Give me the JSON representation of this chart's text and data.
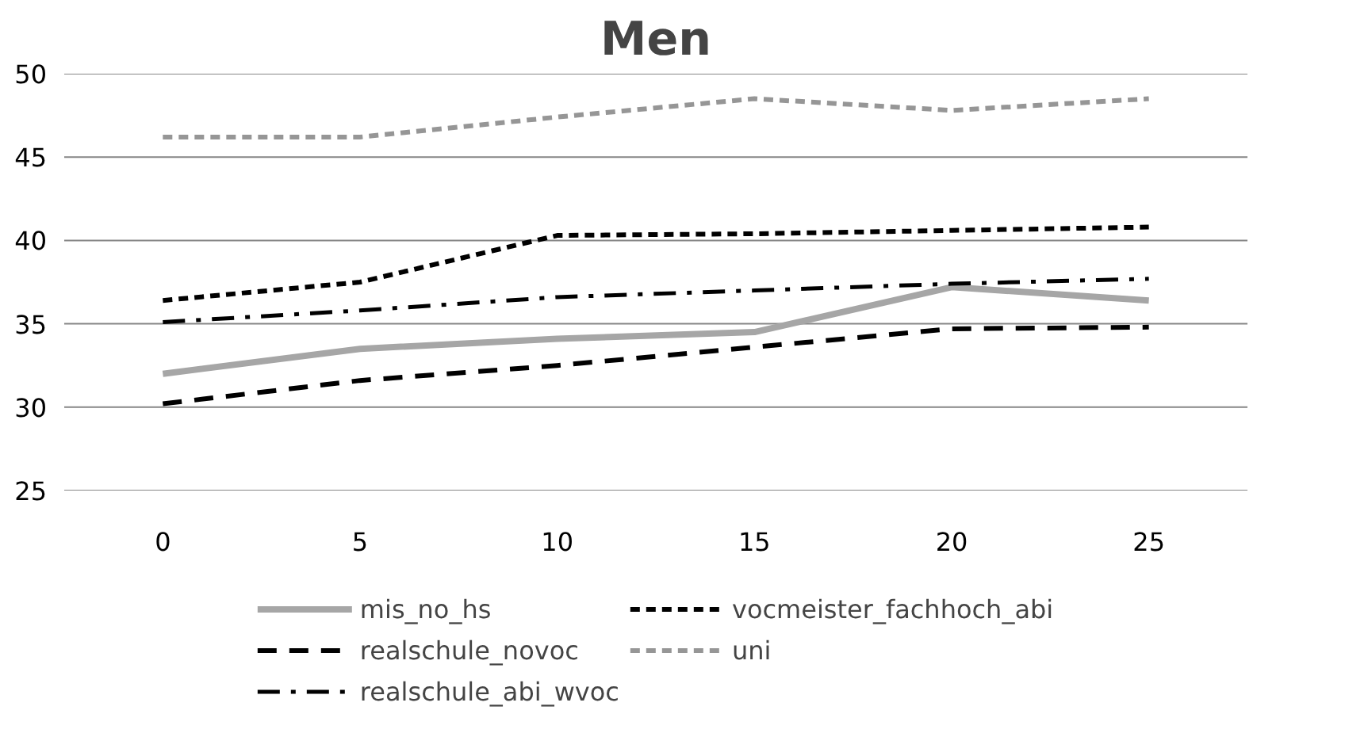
{
  "chart_data": {
    "type": "line",
    "title": "Men",
    "categories": [
      "0",
      "5",
      "10",
      "15",
      "20",
      "25"
    ],
    "ylim": [
      25,
      50
    ],
    "yticks": [
      25,
      30,
      35,
      40,
      45,
      50
    ],
    "grid": "y",
    "legend": "bottom",
    "series": [
      {
        "name": "mis_no_hs",
        "color": "#a6a6a6",
        "line_style": "solid",
        "values": [
          32.0,
          33.5,
          34.1,
          34.5,
          37.2,
          36.4
        ]
      },
      {
        "name": "realschule_novoc",
        "color": "#000000",
        "line_style": "dashed",
        "values": [
          30.2,
          31.6,
          32.5,
          33.6,
          34.7,
          34.8
        ]
      },
      {
        "name": "realschule_abi_wvoc",
        "color": "#000000",
        "line_style": "dashdot",
        "values": [
          35.1,
          35.8,
          36.6,
          37.0,
          37.4,
          37.7
        ]
      },
      {
        "name": "vocmeister_fachhoch_abi",
        "color": "#000000",
        "line_style": "dotted",
        "values": [
          36.4,
          37.5,
          40.3,
          40.4,
          40.6,
          40.8
        ]
      },
      {
        "name": "uni",
        "color": "#969696",
        "line_style": "dotted",
        "values": [
          46.2,
          46.2,
          47.4,
          48.5,
          47.8,
          48.5
        ]
      }
    ]
  }
}
